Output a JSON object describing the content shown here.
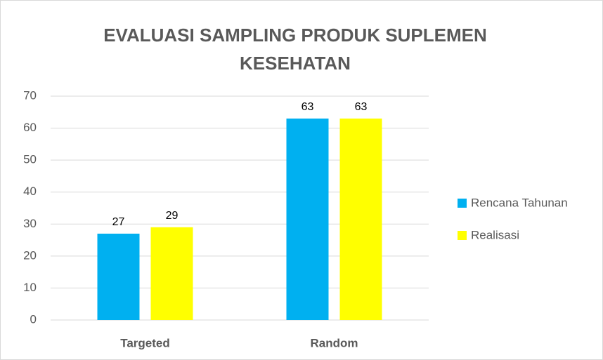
{
  "chart_data": {
    "type": "bar",
    "title": "EVALUASI SAMPLING PRODUK SUPLEMEN KESEHATAN",
    "categories": [
      "Targeted",
      "Random"
    ],
    "series": [
      {
        "name": "Rencana Tahunan",
        "color": "#00b0f0",
        "values": [
          27,
          63
        ]
      },
      {
        "name": "Realisasi",
        "color": "#ffff00",
        "values": [
          29,
          63
        ]
      }
    ],
    "ylim": [
      0,
      70
    ],
    "yticks": [
      0,
      10,
      20,
      30,
      40,
      50,
      60,
      70
    ],
    "grid": true,
    "legend": "right"
  }
}
